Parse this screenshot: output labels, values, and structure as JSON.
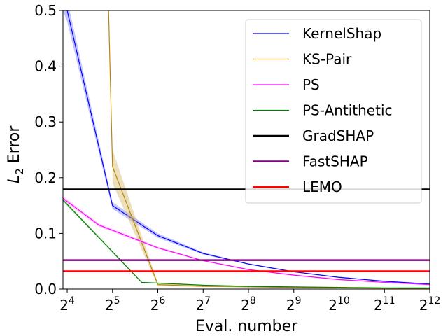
{
  "chart_data": {
    "type": "line",
    "title": "",
    "xlabel": "Eval. number",
    "ylabel_main": "L",
    "ylabel_sub": "2",
    "ylabel_rest": " Error",
    "x_scale": "log2",
    "xlim": [
      15,
      4096
    ],
    "ylim": [
      0,
      0.5
    ],
    "grid": false,
    "legend_position": "top-right",
    "x_ticks": [
      {
        "value": 16,
        "base": "2",
        "exp": "4"
      },
      {
        "value": 32,
        "base": "2",
        "exp": "5"
      },
      {
        "value": 64,
        "base": "2",
        "exp": "6"
      },
      {
        "value": 128,
        "base": "2",
        "exp": "7"
      },
      {
        "value": 256,
        "base": "2",
        "exp": "8"
      },
      {
        "value": 512,
        "base": "2",
        "exp": "9"
      },
      {
        "value": 1024,
        "base": "2",
        "exp": "10"
      },
      {
        "value": 2048,
        "base": "2",
        "exp": "11"
      },
      {
        "value": 4096,
        "base": "2",
        "exp": "12"
      }
    ],
    "y_ticks": [
      {
        "value": 0.0,
        "label": "0.0"
      },
      {
        "value": 0.1,
        "label": "0.1"
      },
      {
        "value": 0.2,
        "label": "0.2"
      },
      {
        "value": 0.3,
        "label": "0.3"
      },
      {
        "value": 0.4,
        "label": "0.4"
      },
      {
        "value": 0.5,
        "label": "0.5"
      }
    ],
    "series": [
      {
        "name": "KernelShap",
        "color": "#0000ff",
        "width": 1.2,
        "x": [
          15,
          16,
          32,
          64,
          128,
          256,
          512,
          1024,
          2048,
          4096
        ],
        "y": [
          0.56,
          0.5,
          0.15,
          0.096,
          0.064,
          0.045,
          0.031,
          0.021,
          0.014,
          0.009
        ],
        "band": [
          0.06,
          0.02,
          0.006,
          0.004,
          0.002,
          0.001,
          0.001,
          0.001,
          0.001,
          0.001
        ],
        "band_color": "#8080ff"
      },
      {
        "name": "KS-Pair",
        "color": "#b8860b",
        "width": 1.2,
        "x": [
          32,
          64,
          128,
          256,
          512,
          1024,
          2048,
          4096
        ],
        "y": [
          0.22,
          0.008,
          0.005,
          0.004,
          0.003,
          0.002,
          0.0015,
          0.001
        ],
        "band": [
          0.03,
          0.003,
          0.001,
          0.001,
          0.001,
          0.0005,
          0.0005,
          0.0005
        ],
        "band_color": "#d2b96a",
        "pre_x": [
          29.5,
          32
        ],
        "pre_y": [
          0.6,
          0.22
        ]
      },
      {
        "name": "PS",
        "color": "#ff00ff",
        "width": 1.2,
        "x": [
          15,
          26,
          64,
          128,
          256,
          512,
          1024,
          2048,
          4096
        ],
        "y": [
          0.163,
          0.115,
          0.074,
          0.051,
          0.035,
          0.025,
          0.017,
          0.012,
          0.008
        ],
        "band": [
          0.004,
          0.003,
          0.002,
          0.001,
          0.001,
          0.001,
          0.001,
          0.0005,
          0.0005
        ],
        "band_color": "#ff99ff"
      },
      {
        "name": "PS-Antithetic",
        "color": "#008000",
        "width": 1.2,
        "x": [
          15,
          50,
          128,
          256,
          512,
          1024,
          2048,
          4096
        ],
        "y": [
          0.16,
          0.012,
          0.007,
          0.005,
          0.004,
          0.003,
          0.002,
          0.002
        ],
        "band": [
          0.003,
          0.001,
          0.001,
          0.0005,
          0.0005,
          0.0005,
          0.0005,
          0.0005
        ],
        "band_color": "#80c080"
      },
      {
        "name": "GradSHAP",
        "color": "#000000",
        "width": 2.5,
        "hline": 0.179
      },
      {
        "name": "FastSHAP",
        "color": "#800080",
        "width": 2.5,
        "hline": 0.052
      },
      {
        "name": "LEMO",
        "color": "#ff0000",
        "width": 2.5,
        "hline": 0.032
      }
    ]
  }
}
